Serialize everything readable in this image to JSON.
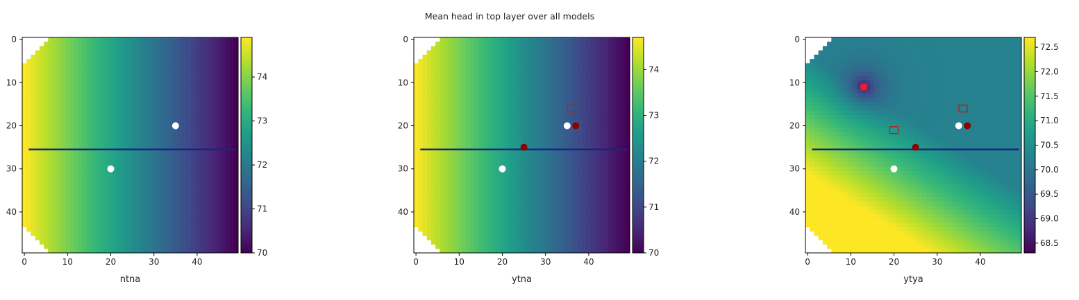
{
  "title": "Mean head in top layer over all models",
  "chart_data": [
    {
      "type": "heatmap",
      "xlabel": "ntna",
      "grid": false,
      "xlim": [
        -0.5,
        49.5
      ],
      "ylim": [
        49.5,
        -0.5
      ],
      "x_ticks": [
        0,
        10,
        20,
        30,
        40
      ],
      "y_ticks": [
        0,
        10,
        20,
        30,
        40
      ],
      "colormap": "viridis",
      "field": "linear_gradient_x",
      "head_range": [
        70.0,
        74.9
      ],
      "colorbar_range": [
        70.0,
        74.9
      ],
      "colorbar_ticks": [
        70,
        71,
        72,
        73,
        74
      ],
      "line": {
        "y": 25.5,
        "x": [
          1,
          49
        ],
        "color": "#1a237e"
      },
      "white_points": [
        [
          35,
          20
        ],
        [
          20,
          30
        ]
      ],
      "darkred_points": [],
      "red_points": [],
      "squares": []
    },
    {
      "type": "heatmap",
      "xlabel": "ytna",
      "grid": false,
      "xlim": [
        -0.5,
        49.5
      ],
      "ylim": [
        49.5,
        -0.5
      ],
      "x_ticks": [
        0,
        10,
        20,
        30,
        40
      ],
      "y_ticks": [
        0,
        10,
        20,
        30,
        40
      ],
      "colormap": "viridis",
      "field": "linear_gradient_x",
      "head_range": [
        70.0,
        74.7
      ],
      "colorbar_range": [
        70.0,
        74.7
      ],
      "colorbar_ticks": [
        70,
        71,
        72,
        73,
        74
      ],
      "line": {
        "y": 25.5,
        "x": [
          1,
          49
        ],
        "color": "#1a237e"
      },
      "white_points": [
        [
          35,
          20
        ],
        [
          20,
          30
        ]
      ],
      "darkred_points": [
        [
          37,
          20
        ],
        [
          25,
          25
        ]
      ],
      "red_points": [],
      "squares": [
        [
          36,
          16
        ]
      ]
    },
    {
      "type": "heatmap",
      "xlabel": "ytya",
      "grid": false,
      "xlim": [
        -0.5,
        49.5
      ],
      "ylim": [
        49.5,
        -0.5
      ],
      "x_ticks": [
        0,
        10,
        20,
        30,
        40
      ],
      "y_ticks": [
        0,
        10,
        20,
        30,
        40
      ],
      "colormap": "viridis",
      "field": "gradient_with_well",
      "well": [
        13,
        11
      ],
      "head_range": [
        68.3,
        72.7
      ],
      "colorbar_range": [
        68.3,
        72.7
      ],
      "colorbar_ticks": [
        68.5,
        69.0,
        69.5,
        70.0,
        70.5,
        71.0,
        71.5,
        72.0,
        72.5
      ],
      "line": {
        "y": 25.5,
        "x": [
          1,
          49
        ],
        "color": "#1a237e"
      },
      "white_points": [
        [
          35,
          20
        ],
        [
          20,
          30
        ]
      ],
      "darkred_points": [
        [
          37,
          20
        ],
        [
          25,
          25
        ]
      ],
      "red_points": [
        [
          13,
          11
        ]
      ],
      "squares": [
        [
          36,
          16
        ],
        [
          20,
          21
        ]
      ]
    }
  ]
}
